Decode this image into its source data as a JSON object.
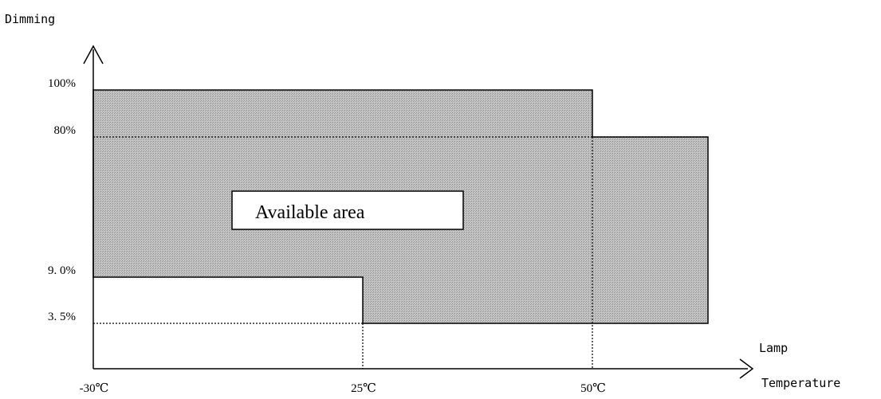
{
  "chart_data": {
    "type": "area",
    "ylabel": "Dimming",
    "xlabel_line1": "Lamp",
    "xlabel_line2": "Temperature",
    "x_ticks": [
      {
        "value": -30,
        "label": "-30℃"
      },
      {
        "value": 25,
        "label": "25℃"
      },
      {
        "value": 50,
        "label": "50℃"
      }
    ],
    "y_ticks": [
      {
        "value": 100,
        "label": "100%"
      },
      {
        "value": 80,
        "label": "80%"
      },
      {
        "value": 9.0,
        "label": "9. 0%"
      },
      {
        "value": 3.5,
        "label": "3. 5%"
      }
    ],
    "available_region": [
      {
        "x": -30,
        "y": 9.0
      },
      {
        "x": -30,
        "y": 100
      },
      {
        "x": 50,
        "y": 100
      },
      {
        "x": 50,
        "y": 80
      },
      {
        "x": 74,
        "y": 80
      },
      {
        "x": 74,
        "y": 3.5
      },
      {
        "x": 25,
        "y": 3.5
      },
      {
        "x": 25,
        "y": 9.0
      }
    ],
    "annotation": "Available area",
    "fill_color": "#bdbdbd"
  }
}
